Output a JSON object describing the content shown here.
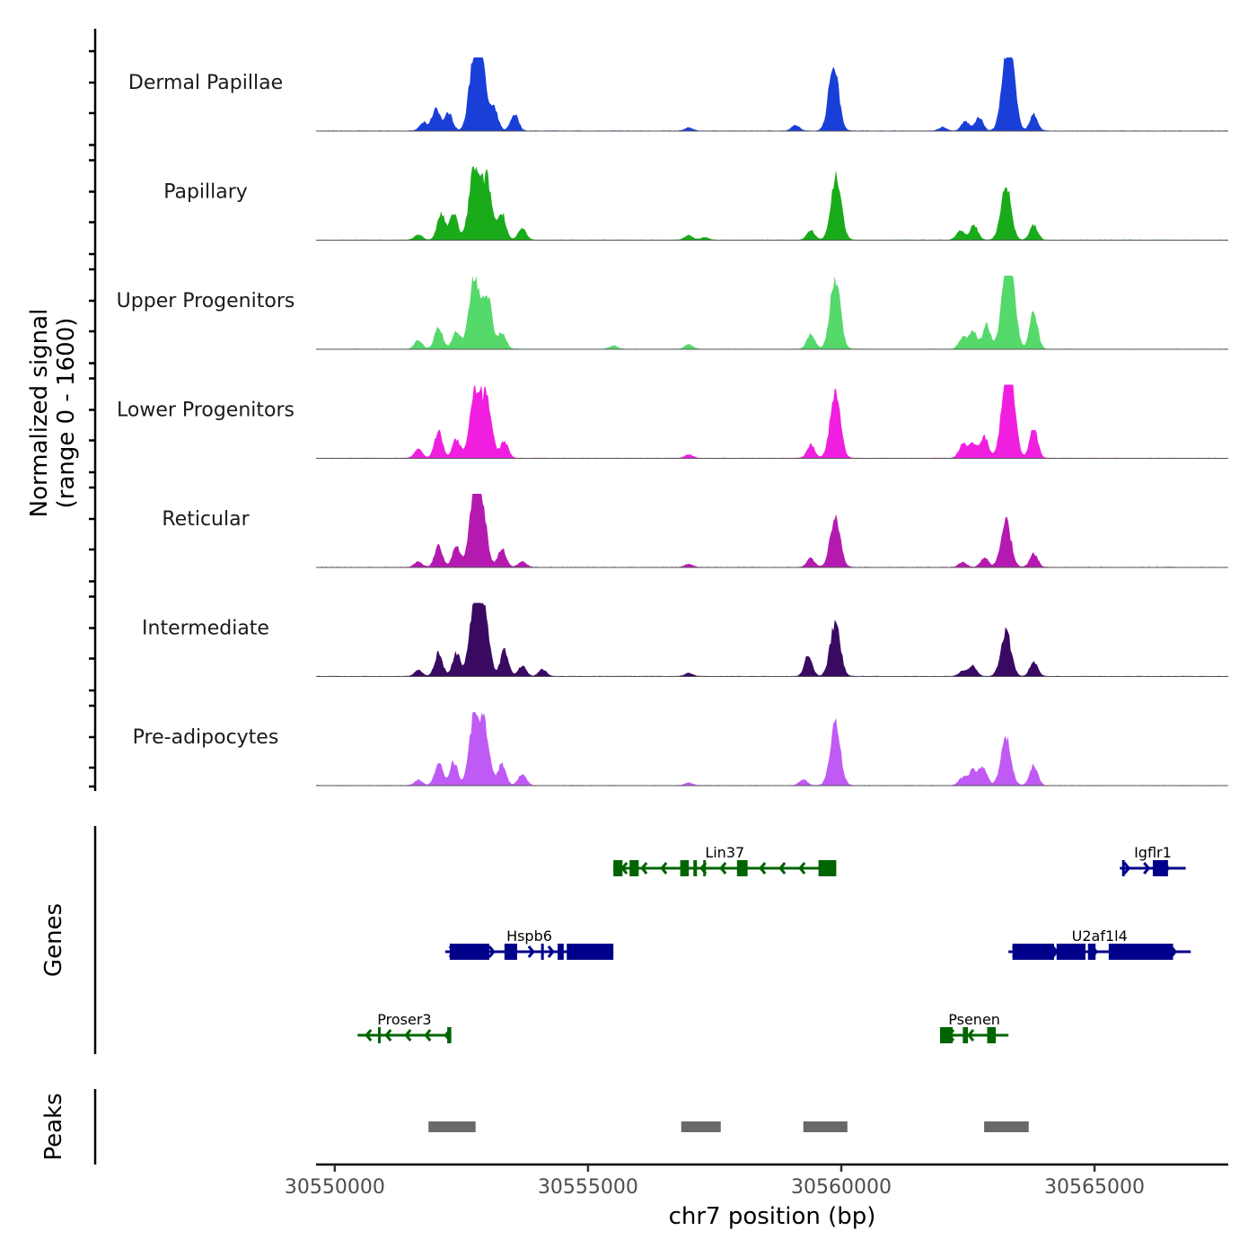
{
  "chart_data": {
    "type": "area",
    "title": "",
    "xlabel": "chr7 position (bp)",
    "ylabel": "Normalized signal\n(range 0 - 1600)",
    "ylabel_lines": [
      "Normalized signal",
      "(range 0 - 1600)"
    ],
    "ylim": [
      0,
      1600
    ],
    "xlim": [
      30549630,
      30567640
    ],
    "x_ticks": [
      30550000,
      30555000,
      30560000,
      30565000
    ],
    "x_tick_labels": [
      "30550000",
      "30555000",
      "30560000",
      "30565000"
    ],
    "grid": false,
    "coverage_series": [
      {
        "name": "Dermal Papillae",
        "color": "#1a3fd9",
        "peaks": [
          [
            30551750,
            180
          ],
          [
            30552000,
            520
          ],
          [
            30552250,
            400
          ],
          [
            30552750,
            1550
          ],
          [
            30552900,
            1300
          ],
          [
            30553150,
            450
          ],
          [
            30553550,
            380
          ],
          [
            30556990,
            70
          ],
          [
            30559100,
            120
          ],
          [
            30559850,
            1500
          ],
          [
            30562000,
            80
          ],
          [
            30562450,
            210
          ],
          [
            30562720,
            300
          ],
          [
            30563250,
            1180
          ],
          [
            30563350,
            1200
          ],
          [
            30563800,
            360
          ]
        ]
      },
      {
        "name": "Papillary",
        "color": "#1aab1a",
        "peaks": [
          [
            30551650,
            120
          ],
          [
            30552100,
            580
          ],
          [
            30552350,
            600
          ],
          [
            30552750,
            1600
          ],
          [
            30553000,
            1350
          ],
          [
            30553300,
            600
          ],
          [
            30553700,
            250
          ],
          [
            30556990,
            110
          ],
          [
            30557300,
            60
          ],
          [
            30559400,
            220
          ],
          [
            30559900,
            1450
          ],
          [
            30562350,
            200
          ],
          [
            30562620,
            330
          ],
          [
            30563250,
            1260
          ],
          [
            30563800,
            330
          ]
        ]
      },
      {
        "name": "Upper Progenitors",
        "color": "#55d96a",
        "peaks": [
          [
            30551650,
            200
          ],
          [
            30552050,
            500
          ],
          [
            30552400,
            400
          ],
          [
            30552750,
            1600
          ],
          [
            30553000,
            1250
          ],
          [
            30553300,
            360
          ],
          [
            30555500,
            70
          ],
          [
            30556990,
            100
          ],
          [
            30559400,
            340
          ],
          [
            30559880,
            1600
          ],
          [
            30562400,
            250
          ],
          [
            30562600,
            410
          ],
          [
            30562870,
            520
          ],
          [
            30563250,
            1500
          ],
          [
            30563350,
            1300
          ],
          [
            30563800,
            820
          ]
        ]
      },
      {
        "name": "Lower Progenitors",
        "color": "#f01fe0",
        "peaks": [
          [
            30551650,
            200
          ],
          [
            30552050,
            620
          ],
          [
            30552400,
            420
          ],
          [
            30552770,
            1500
          ],
          [
            30553000,
            1350
          ],
          [
            30553350,
            370
          ],
          [
            30556990,
            80
          ],
          [
            30559400,
            300
          ],
          [
            30559880,
            1500
          ],
          [
            30562400,
            300
          ],
          [
            30562600,
            340
          ],
          [
            30562830,
            460
          ],
          [
            30563250,
            1400
          ],
          [
            30563350,
            1200
          ],
          [
            30563800,
            680
          ]
        ]
      },
      {
        "name": "Reticular",
        "color": "#b51ab0",
        "peaks": [
          [
            30551650,
            120
          ],
          [
            30552050,
            480
          ],
          [
            30552400,
            480
          ],
          [
            30552750,
            1450
          ],
          [
            30552900,
            1300
          ],
          [
            30553300,
            420
          ],
          [
            30553700,
            130
          ],
          [
            30556990,
            70
          ],
          [
            30559400,
            200
          ],
          [
            30559880,
            1100
          ],
          [
            30562400,
            110
          ],
          [
            30562830,
            210
          ],
          [
            30563250,
            1050
          ],
          [
            30563800,
            300
          ]
        ]
      },
      {
        "name": "Intermediate",
        "color": "#3a0a63",
        "peaks": [
          [
            30551650,
            130
          ],
          [
            30552050,
            530
          ],
          [
            30552400,
            520
          ],
          [
            30552750,
            1450
          ],
          [
            30552950,
            1400
          ],
          [
            30553350,
            600
          ],
          [
            30553700,
            230
          ],
          [
            30554100,
            150
          ],
          [
            30556990,
            70
          ],
          [
            30559350,
            470
          ],
          [
            30559880,
            1200
          ],
          [
            30562400,
            120
          ],
          [
            30562600,
            230
          ],
          [
            30563250,
            1020
          ],
          [
            30563800,
            320
          ]
        ]
      },
      {
        "name": "Pre-adipocytes",
        "color": "#c05af5",
        "peaks": [
          [
            30551650,
            120
          ],
          [
            30552050,
            510
          ],
          [
            30552350,
            520
          ],
          [
            30552750,
            1450
          ],
          [
            30552950,
            1250
          ],
          [
            30553300,
            480
          ],
          [
            30553700,
            250
          ],
          [
            30556990,
            60
          ],
          [
            30559250,
            130
          ],
          [
            30559880,
            1350
          ],
          [
            30562400,
            180
          ],
          [
            30562600,
            330
          ],
          [
            30562800,
            420
          ],
          [
            30563250,
            1060
          ],
          [
            30563800,
            450
          ]
        ]
      }
    ],
    "gene_track": {
      "label": "Genes",
      "genes": [
        {
          "name": "Lin37",
          "strand": "-",
          "color": "#006400",
          "row": 0,
          "start": 30555500,
          "end": 30559900,
          "exons": [
            [
              30555500,
              30555680
            ],
            [
              30555820,
              30556000
            ],
            [
              30556820,
              30556990
            ],
            [
              30557080,
              30557150
            ],
            [
              30557940,
              30558150
            ],
            [
              30559550,
              30559900
            ]
          ],
          "ticks": [
            30557300
          ]
        },
        {
          "name": "Igflr1",
          "strand": "+",
          "color": "#00008b",
          "row": 0,
          "start": 30565500,
          "end": 30566800,
          "exons": [
            [
              30566150,
              30566450
            ]
          ],
          "ticks": [
            30565570
          ]
        },
        {
          "name": "Hspb6",
          "strand": "+",
          "color": "#00008b",
          "row": 1,
          "start": 30552180,
          "end": 30555500,
          "exons": [
            [
              30552270,
              30553050
            ],
            [
              30553350,
              30553600
            ],
            [
              30554400,
              30554520
            ],
            [
              30554580,
              30555500
            ]
          ],
          "ticks": [
            30554100
          ]
        },
        {
          "name": "U2af1l4",
          "strand": "+",
          "color": "#00008b",
          "row": 1,
          "start": 30563300,
          "end": 30566900,
          "exons": [
            [
              30563380,
              30564200
            ],
            [
              30564250,
              30564820
            ],
            [
              30564870,
              30565020
            ],
            [
              30565280,
              30566550
            ]
          ],
          "ticks": []
        },
        {
          "name": "Proser3",
          "strand": "-",
          "color": "#006400",
          "row": 2,
          "start": 30550450,
          "end": 30552300,
          "exons": [
            [
              30552220,
              30552300
            ]
          ],
          "ticks": [
            30550880
          ]
        },
        {
          "name": "Psenen",
          "strand": "-",
          "color": "#006400",
          "row": 2,
          "start": 30561950,
          "end": 30563300,
          "exons": [
            [
              30561950,
              30562200
            ],
            [
              30562400,
              30562500
            ],
            [
              30562880,
              30563050
            ]
          ],
          "ticks": []
        }
      ]
    },
    "peak_track": {
      "label": "Peaks",
      "color": "#696969",
      "peaks": [
        [
          30551850,
          30552780
        ],
        [
          30556840,
          30557620
        ],
        [
          30559250,
          30560120
        ],
        [
          30562820,
          30563700
        ]
      ]
    }
  }
}
